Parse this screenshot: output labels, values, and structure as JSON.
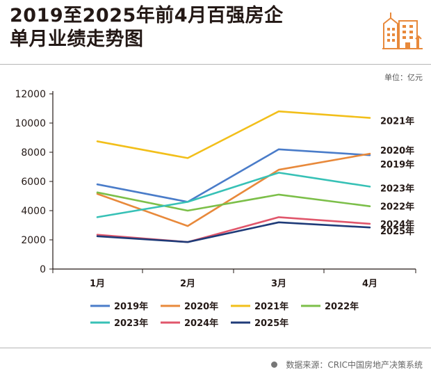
{
  "title": {
    "line1": "2019至2025年前4月百强房企",
    "line2": "单月业绩走势图"
  },
  "unit": "单位：亿元",
  "source": "数据来源：CRIC中国房地产决策系统",
  "logo": "city-buildings-icon",
  "chart_data": {
    "type": "line",
    "title": "2019至2025年前4月百强房企单月业绩走势图",
    "xlabel": "",
    "ylabel": "单位：亿元",
    "categories": [
      "1月",
      "2月",
      "3月",
      "4月"
    ],
    "ylim": [
      0,
      12000
    ],
    "yticks": [
      0,
      2000,
      4000,
      6000,
      8000,
      10000,
      12000
    ],
    "series": [
      {
        "name": "2019年",
        "values": [
          5800,
          4600,
          8200,
          7800
        ],
        "color": "#4a7cc9"
      },
      {
        "name": "2020年",
        "values": [
          5150,
          2950,
          6800,
          7900
        ],
        "color": "#e8893b"
      },
      {
        "name": "2021年",
        "values": [
          8750,
          7600,
          10800,
          10350
        ],
        "color": "#f2bf1a"
      },
      {
        "name": "2022年",
        "values": [
          5250,
          4000,
          5100,
          4300
        ],
        "color": "#7cbf49"
      },
      {
        "name": "2023年",
        "values": [
          3550,
          4600,
          6600,
          5650
        ],
        "color": "#37c1b6"
      },
      {
        "name": "2024年",
        "values": [
          2350,
          1850,
          3550,
          3100
        ],
        "color": "#e0566b"
      },
      {
        "name": "2025年",
        "values": [
          2250,
          1850,
          3200,
          2850
        ],
        "color": "#1f3b78"
      }
    ],
    "legend_position": "bottom"
  }
}
